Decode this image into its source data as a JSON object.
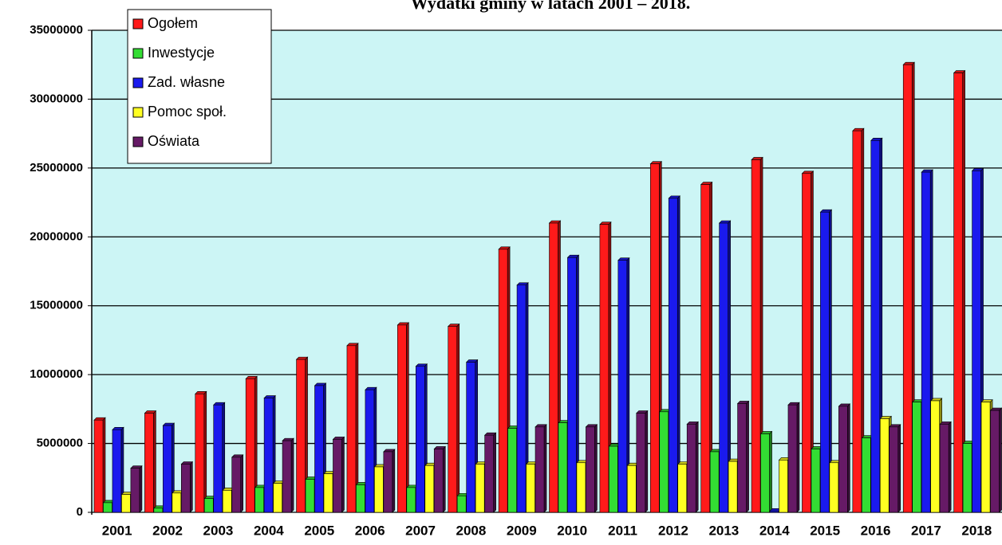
{
  "chart_data": {
    "type": "bar",
    "title": "Wydatki gminy w latach 2001 – 2018.",
    "categories": [
      "2001",
      "2002",
      "2003",
      "2004",
      "2005",
      "2006",
      "2007",
      "2008",
      "2009",
      "2010",
      "2011",
      "2012",
      "2013",
      "2014",
      "2015",
      "2016",
      "2017",
      "2018"
    ],
    "series": [
      {
        "name": "Ogołem",
        "color": "#ff1a1a",
        "values": [
          6700000,
          7200000,
          8600000,
          9700000,
          11100000,
          12100000,
          13600000,
          13500000,
          19100000,
          21000000,
          20900000,
          25300000,
          23800000,
          25600000,
          24600000,
          27700000,
          32500000,
          31900000
        ]
      },
      {
        "name": "Inwestycje",
        "color": "#33dd33",
        "values": [
          700000,
          300000,
          1000000,
          1800000,
          2400000,
          2000000,
          1800000,
          1200000,
          6100000,
          6500000,
          4800000,
          7300000,
          4400000,
          5700000,
          4600000,
          5400000,
          8000000,
          5000000
        ]
      },
      {
        "name": "Zad. własne",
        "color": "#1a1aee",
        "values": [
          6000000,
          6300000,
          7800000,
          8300000,
          9200000,
          8900000,
          10600000,
          10900000,
          16500000,
          18500000,
          18300000,
          22800000,
          21000000,
          100000,
          21800000,
          27000000,
          24700000,
          24800000
        ]
      },
      {
        "name": "Pomoc społ.",
        "color": "#ffff22",
        "values": [
          1300000,
          1400000,
          1600000,
          2100000,
          2800000,
          3300000,
          3400000,
          3500000,
          3500000,
          3600000,
          3400000,
          3500000,
          3700000,
          3800000,
          3600000,
          6800000,
          8100000,
          8000000
        ]
      },
      {
        "name": "Oświata",
        "color": "#661a66",
        "values": [
          3200000,
          3500000,
          4000000,
          5200000,
          5300000,
          4400000,
          4600000,
          5600000,
          6200000,
          6200000,
          7200000,
          6400000,
          7900000,
          7800000,
          7700000,
          6200000,
          6400000,
          7400000
        ]
      }
    ],
    "ylim": [
      0,
      35000000
    ],
    "yticks": [
      0,
      5000000,
      10000000,
      15000000,
      20000000,
      25000000,
      30000000,
      35000000
    ],
    "grid": true
  }
}
